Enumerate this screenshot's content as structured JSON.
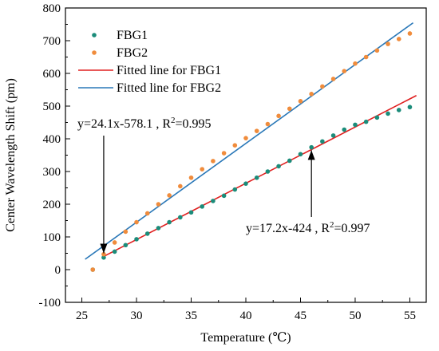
{
  "chart_data": {
    "type": "scatter",
    "xlabel": "Temperature (℃)",
    "ylabel": "Center Wavelength Shift (pm)",
    "xlim": [
      23.5,
      56.5
    ],
    "ylim": [
      -100,
      800
    ],
    "xticks": [
      25,
      30,
      35,
      40,
      45,
      50,
      55
    ],
    "yticks": [
      -100,
      0,
      100,
      200,
      300,
      400,
      500,
      600,
      700,
      800
    ],
    "legend_position": "top-left",
    "series": [
      {
        "name": "FBG1",
        "kind": "scatter",
        "color": "#1b8c7a",
        "x": [
          26,
          27,
          28,
          29,
          30,
          31,
          32,
          33,
          34,
          35,
          36,
          37,
          38,
          39,
          40,
          41,
          42,
          43,
          44,
          45,
          46,
          47,
          48,
          49,
          50,
          51,
          52,
          53,
          54,
          55
        ],
        "y": [
          0,
          37,
          55,
          75,
          93,
          110,
          127,
          145,
          160,
          175,
          193,
          210,
          226,
          245,
          263,
          281,
          300,
          316,
          333,
          353,
          374,
          392,
          410,
          428,
          443,
          452,
          465,
          477,
          488,
          497
        ]
      },
      {
        "name": "FBG2",
        "kind": "scatter",
        "color": "#f08c3c",
        "x": [
          26,
          27,
          28,
          29,
          30,
          31,
          32,
          33,
          34,
          35,
          36,
          37,
          38,
          39,
          40,
          41,
          42,
          43,
          44,
          45,
          46,
          47,
          48,
          49,
          50,
          51,
          52,
          53,
          54,
          55
        ],
        "y": [
          0,
          47,
          83,
          116,
          145,
          172,
          200,
          227,
          255,
          281,
          307,
          332,
          356,
          380,
          402,
          424,
          445,
          470,
          492,
          515,
          537,
          560,
          583,
          607,
          630,
          650,
          670,
          690,
          705,
          722
        ]
      },
      {
        "name": "Fitted line for FBG1",
        "kind": "line",
        "color": "#e02020",
        "slope": 17.2,
        "intercept": -424,
        "x_range": [
          27,
          55.6
        ]
      },
      {
        "name": "Fitted line for FBG2",
        "kind": "line",
        "color": "#2a78b8",
        "slope": 24.1,
        "intercept": -578.1,
        "x_range": [
          25.3,
          55.3
        ]
      }
    ],
    "annotations": [
      {
        "text": "y=24.1x-578.1 , R",
        "sup": "2",
        "tail": "=0.995",
        "arrow_to": [
          27,
          50
        ]
      },
      {
        "text": "y=17.2x-424 , R",
        "sup": "2",
        "tail": "=0.997",
        "arrow_to": [
          46,
          365
        ]
      }
    ]
  }
}
